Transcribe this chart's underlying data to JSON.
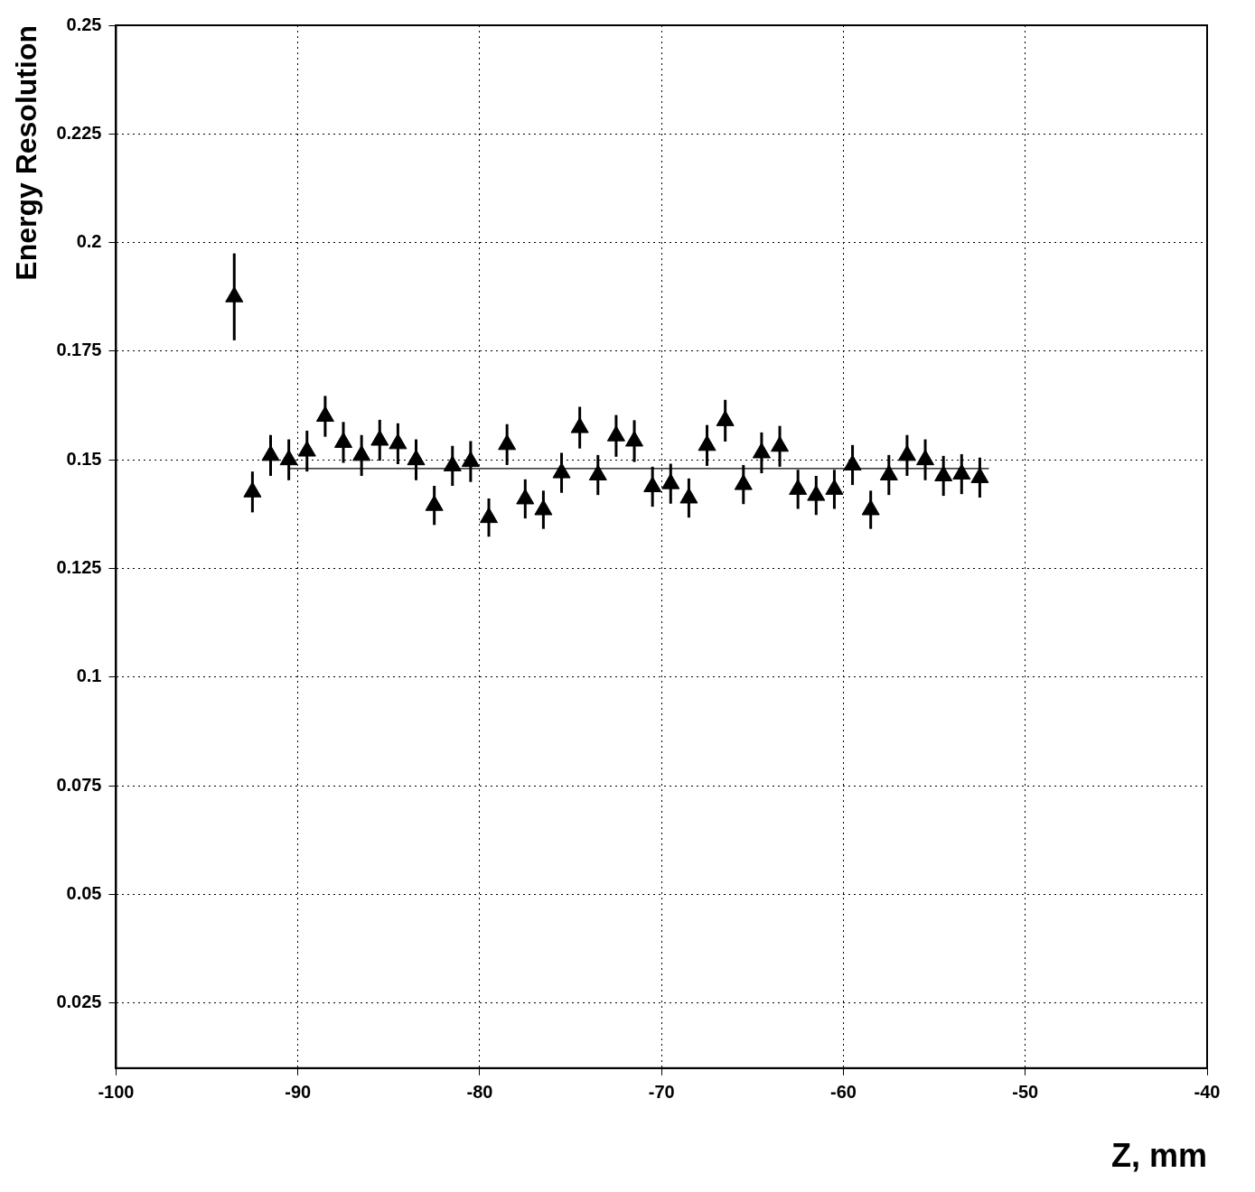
{
  "chart_data": {
    "type": "scatter",
    "xlabel": "Z, mm",
    "ylabel": "Energy Resolution",
    "xlim": [
      -100,
      -40
    ],
    "xticks": [
      -100,
      -90,
      -80,
      -70,
      -60,
      -50,
      -40
    ],
    "ylim": [
      0.01,
      0.25
    ],
    "yticks": [
      0.025,
      0.05,
      0.075,
      0.1,
      0.125,
      0.15,
      0.175,
      0.2,
      0.225,
      0.25
    ],
    "grid": true,
    "legend": false,
    "series": [
      {
        "marker": "triangle",
        "color": "#000000",
        "x": [
          -93.5,
          -92.5,
          -91.5,
          -90.5,
          -89.5,
          -88.5,
          -87.5,
          -86.5,
          -85.5,
          -84.5,
          -83.5,
          -82.5,
          -81.5,
          -80.5,
          -79.5,
          -78.5,
          -77.5,
          -76.5,
          -75.5,
          -74.5,
          -73.5,
          -72.5,
          -71.5,
          -70.5,
          -69.5,
          -68.5,
          -67.5,
          -66.5,
          -65.5,
          -64.5,
          -63.5,
          -62.5,
          -61.5,
          -60.5,
          -59.5,
          -58.5,
          -57.5,
          -56.5,
          -55.5,
          -54.5,
          -53.5,
          -52.5
        ],
        "values": [
          0.1875,
          0.1426,
          0.151,
          0.15,
          0.152,
          0.16,
          0.154,
          0.151,
          0.1545,
          0.1537,
          0.15,
          0.1395,
          0.1486,
          0.1496,
          0.1367,
          0.1535,
          0.141,
          0.1385,
          0.147,
          0.1574,
          0.1465,
          0.1555,
          0.1543,
          0.1438,
          0.1445,
          0.1412,
          0.1533,
          0.159,
          0.1443,
          0.1516,
          0.1531,
          0.1432,
          0.1418,
          0.1432,
          0.1488,
          0.1385,
          0.1465,
          0.151,
          0.15,
          0.1463,
          0.1467,
          0.1459
        ],
        "errors": [
          0.01,
          0.0047,
          0.0047,
          0.0047,
          0.0047,
          0.0047,
          0.0047,
          0.0047,
          0.0047,
          0.0047,
          0.0047,
          0.0045,
          0.0046,
          0.0047,
          0.0044,
          0.0047,
          0.0045,
          0.0044,
          0.0046,
          0.0048,
          0.0046,
          0.0048,
          0.0048,
          0.0046,
          0.0046,
          0.0045,
          0.0047,
          0.0048,
          0.0045,
          0.0047,
          0.0047,
          0.0045,
          0.0045,
          0.0045,
          0.0046,
          0.0044,
          0.0046,
          0.0047,
          0.0047,
          0.0046,
          0.0046,
          0.0046
        ]
      },
      {
        "type": "line",
        "color": "#000000",
        "x": [
          -90.5,
          -52
        ],
        "values": [
          0.148,
          0.148
        ]
      }
    ]
  }
}
